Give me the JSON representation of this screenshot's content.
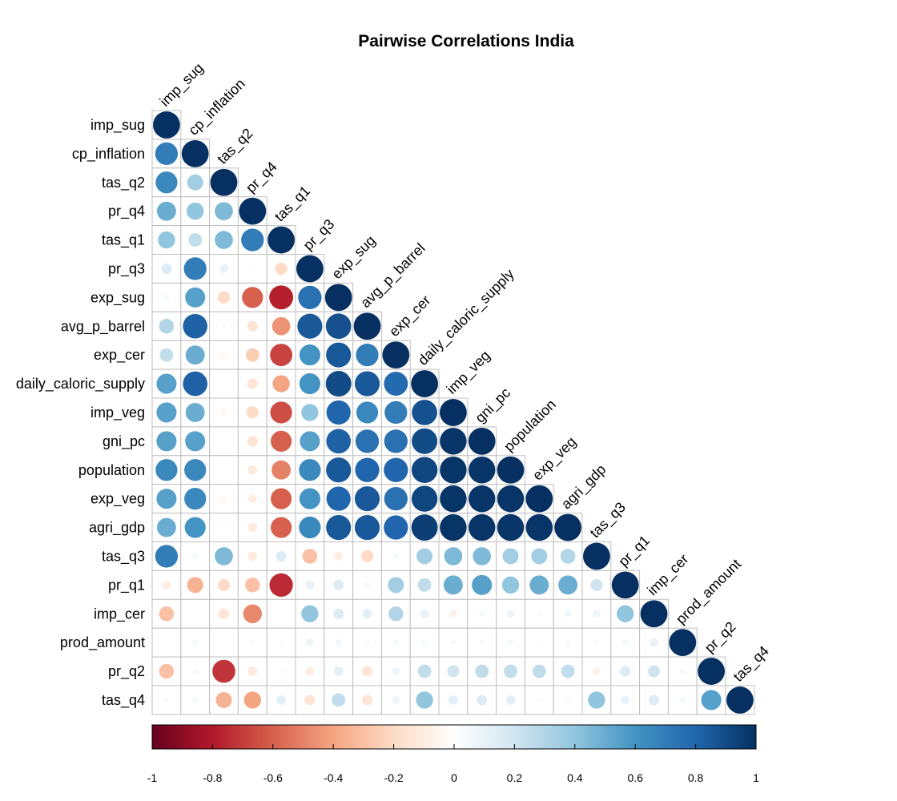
{
  "chart_data": {
    "type": "heatmap",
    "title": "Pairwise Correlations India",
    "style": "correlogram-circles-lower-triangle",
    "variables": [
      "imp_sug",
      "cp_inflation",
      "tas_q2",
      "pr_q4",
      "tas_q1",
      "pr_q3",
      "exp_sug",
      "avg_p_barrel",
      "exp_cer",
      "daily_caloric_supply",
      "imp_veg",
      "gni_pc",
      "population",
      "exp_veg",
      "agri_gdp",
      "tas_q3",
      "pr_q1",
      "imp_cer",
      "prod_amount",
      "pr_q2",
      "tas_q4"
    ],
    "matrix_lower": [
      [
        1.0
      ],
      [
        0.7,
        1.0
      ],
      [
        0.65,
        0.35,
        1.0
      ],
      [
        0.5,
        0.4,
        0.45,
        1.0
      ],
      [
        0.4,
        0.25,
        0.45,
        0.7,
        1.0
      ],
      [
        0.15,
        0.7,
        0.1,
        0.02,
        -0.2,
        1.0
      ],
      [
        0.05,
        0.55,
        -0.2,
        -0.6,
        -0.78,
        0.75,
        1.0
      ],
      [
        0.3,
        0.82,
        0.03,
        -0.15,
        -0.45,
        0.85,
        0.88,
        1.0
      ],
      [
        0.25,
        0.5,
        -0.05,
        -0.25,
        -0.68,
        0.6,
        0.85,
        0.7,
        1.0
      ],
      [
        0.55,
        0.82,
        0.02,
        -0.15,
        -0.4,
        0.6,
        0.9,
        0.85,
        0.78,
        1.0
      ],
      [
        0.55,
        0.5,
        -0.05,
        -0.2,
        -0.65,
        0.4,
        0.8,
        0.65,
        0.7,
        0.88,
        1.0
      ],
      [
        0.55,
        0.55,
        0.0,
        -0.15,
        -0.6,
        0.55,
        0.82,
        0.75,
        0.75,
        0.9,
        0.98,
        1.0
      ],
      [
        0.65,
        0.65,
        0.0,
        -0.12,
        -0.5,
        0.65,
        0.85,
        0.8,
        0.8,
        0.92,
        0.98,
        0.98,
        1.0
      ],
      [
        0.55,
        0.65,
        -0.05,
        -0.1,
        -0.6,
        0.6,
        0.8,
        0.85,
        0.75,
        0.92,
        0.98,
        0.98,
        0.98,
        1.0
      ],
      [
        0.5,
        0.6,
        -0.03,
        -0.12,
        -0.6,
        0.65,
        0.85,
        0.85,
        0.8,
        0.95,
        0.98,
        0.98,
        0.98,
        0.98,
        1.0
      ],
      [
        0.7,
        0.05,
        0.45,
        -0.12,
        0.15,
        -0.3,
        -0.1,
        -0.2,
        0.05,
        0.35,
        0.45,
        0.45,
        0.35,
        0.35,
        0.3,
        1.0
      ],
      [
        -0.1,
        -0.35,
        -0.2,
        -0.3,
        -0.75,
        0.1,
        0.15,
        0.05,
        0.35,
        0.25,
        0.5,
        0.55,
        0.4,
        0.5,
        0.5,
        0.2,
        1.0
      ],
      [
        -0.3,
        0.0,
        -0.15,
        -0.48,
        0.0,
        0.4,
        0.15,
        0.12,
        0.3,
        0.1,
        -0.08,
        0.05,
        0.08,
        0.04,
        0.06,
        0.08,
        0.4,
        1.0
      ],
      [
        0.0,
        0.05,
        0.0,
        0.03,
        0.03,
        0.08,
        0.06,
        0.04,
        0.05,
        0.05,
        0.04,
        0.04,
        0.05,
        0.03,
        0.04,
        0.03,
        0.05,
        0.1,
        1.0
      ],
      [
        -0.3,
        0.05,
        -0.72,
        -0.12,
        -0.03,
        -0.1,
        0.12,
        -0.15,
        0.08,
        0.25,
        0.2,
        0.25,
        0.25,
        0.25,
        0.25,
        -0.08,
        0.15,
        0.2,
        0.05,
        1.0
      ],
      [
        0.03,
        0.05,
        -0.35,
        -0.4,
        0.12,
        -0.15,
        0.25,
        -0.15,
        0.08,
        0.4,
        0.12,
        0.15,
        0.12,
        0.03,
        0.04,
        0.4,
        0.1,
        0.15,
        0.05,
        0.55,
        1.0
      ]
    ],
    "colorbar": {
      "range": [
        -1,
        1
      ],
      "ticks": [
        "-1",
        "-0.8",
        "-0.6",
        "-0.4",
        "-0.2",
        "0",
        "0.2",
        "0.4",
        "0.6",
        "0.8",
        "1"
      ]
    },
    "colorscale": [
      "#67001f",
      "#b2182b",
      "#d6604d",
      "#f4a582",
      "#fddbc7",
      "#ffffff",
      "#d1e5f0",
      "#92c5de",
      "#4393c3",
      "#2166ac",
      "#053061"
    ]
  }
}
